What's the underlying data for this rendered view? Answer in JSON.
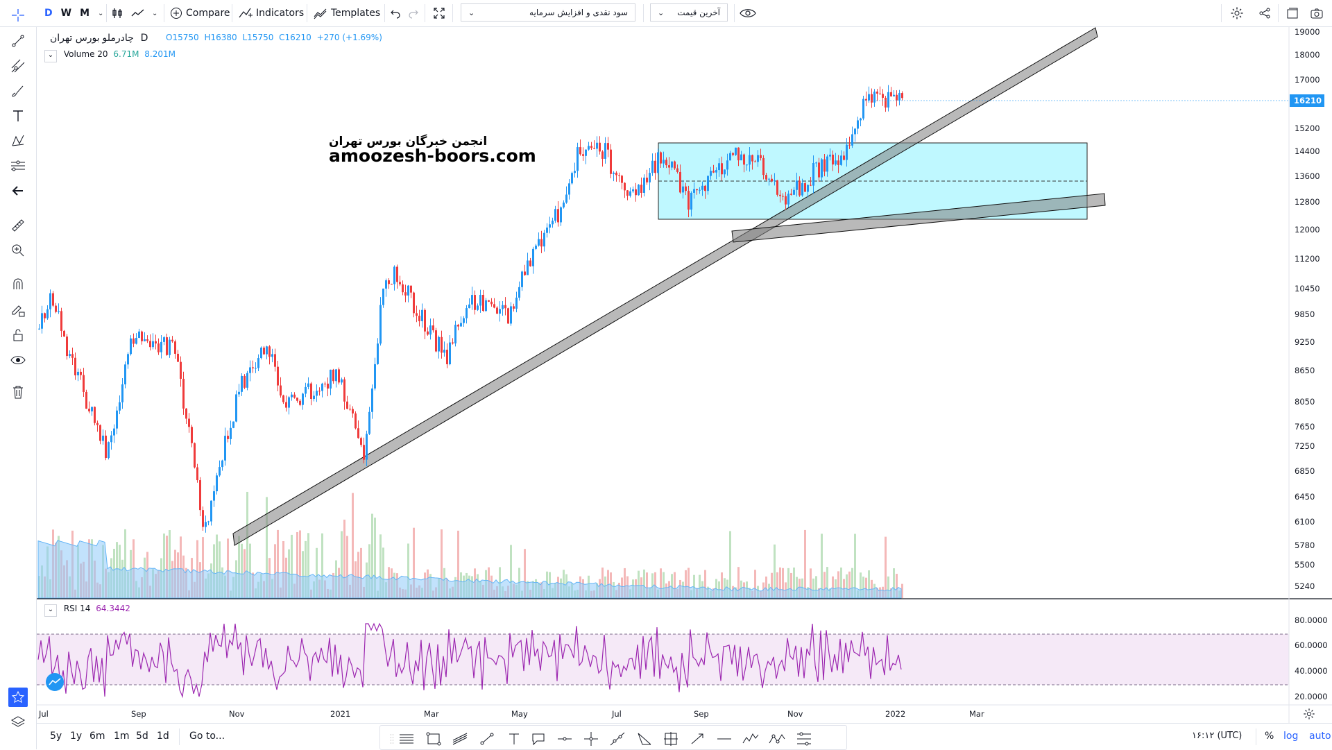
{
  "intervals": [
    "D",
    "W",
    "M"
  ],
  "toolbar": {
    "compare": "Compare",
    "indicators": "Indicators",
    "templates": "Templates",
    "study_dropdown": "سود نقدی و افزایش سرمایه",
    "price_dropdown": "آخرین قیمت"
  },
  "symbol": {
    "name": "چادرملو",
    "exchange": "بورس تهران",
    "interval": "D",
    "open": "O15750",
    "high": "H16380",
    "low": "L15750",
    "close": "C16210",
    "change": "+270 (+1.69%)"
  },
  "volume": {
    "label": "Volume 20",
    "v1": "6.71M",
    "v2": "8.201M"
  },
  "rsi": {
    "label": "RSI 14",
    "value": "64.3442"
  },
  "watermark": {
    "line1": "انجمن خبرگان بورس تهران",
    "line2": "amoozesh-boors.com"
  },
  "price_axis": [
    "19000",
    "18000",
    "17000",
    "16210",
    "15200",
    "14400",
    "13600",
    "12800",
    "12000",
    "11200",
    "10450",
    "9850",
    "9250",
    "8650",
    "8050",
    "7650",
    "7250",
    "6850",
    "6450",
    "6100",
    "5780",
    "5500",
    "5240"
  ],
  "current_price": "16210",
  "rsi_axis": [
    "80.0000",
    "60.0000",
    "40.0000",
    "20.0000"
  ],
  "time_axis": [
    "Jul",
    "Sep",
    "Nov",
    "2021",
    "Mar",
    "May",
    "Jul",
    "Sep",
    "Nov",
    "2022",
    "Mar"
  ],
  "ranges": [
    "5y",
    "1y",
    "6m",
    "1m",
    "5d",
    "1d"
  ],
  "goto": "Go to...",
  "clock": "۱۶:۱۲ (UTC)",
  "scale": {
    "percent": "%",
    "log": "log",
    "auto": "auto"
  },
  "colors": {
    "up": "#2196f3",
    "down": "#ef3b3b",
    "accent": "#2962ff",
    "channel": "#00e5ff",
    "rsi": "#9c27b0"
  },
  "icons": {
    "left_toolbar": [
      "crosshair-icon",
      "trend-line-icon",
      "pitchfork-icon",
      "brush-icon",
      "text-icon",
      "pattern-icon",
      "prediction-icon",
      "back-arrow-icon",
      "ruler-icon",
      "zoom-in-icon",
      "magnet-icon",
      "lock-draw-icon",
      "lock-icon",
      "eye-icon",
      "trash-icon",
      "star-icon",
      "layers-icon"
    ]
  }
}
